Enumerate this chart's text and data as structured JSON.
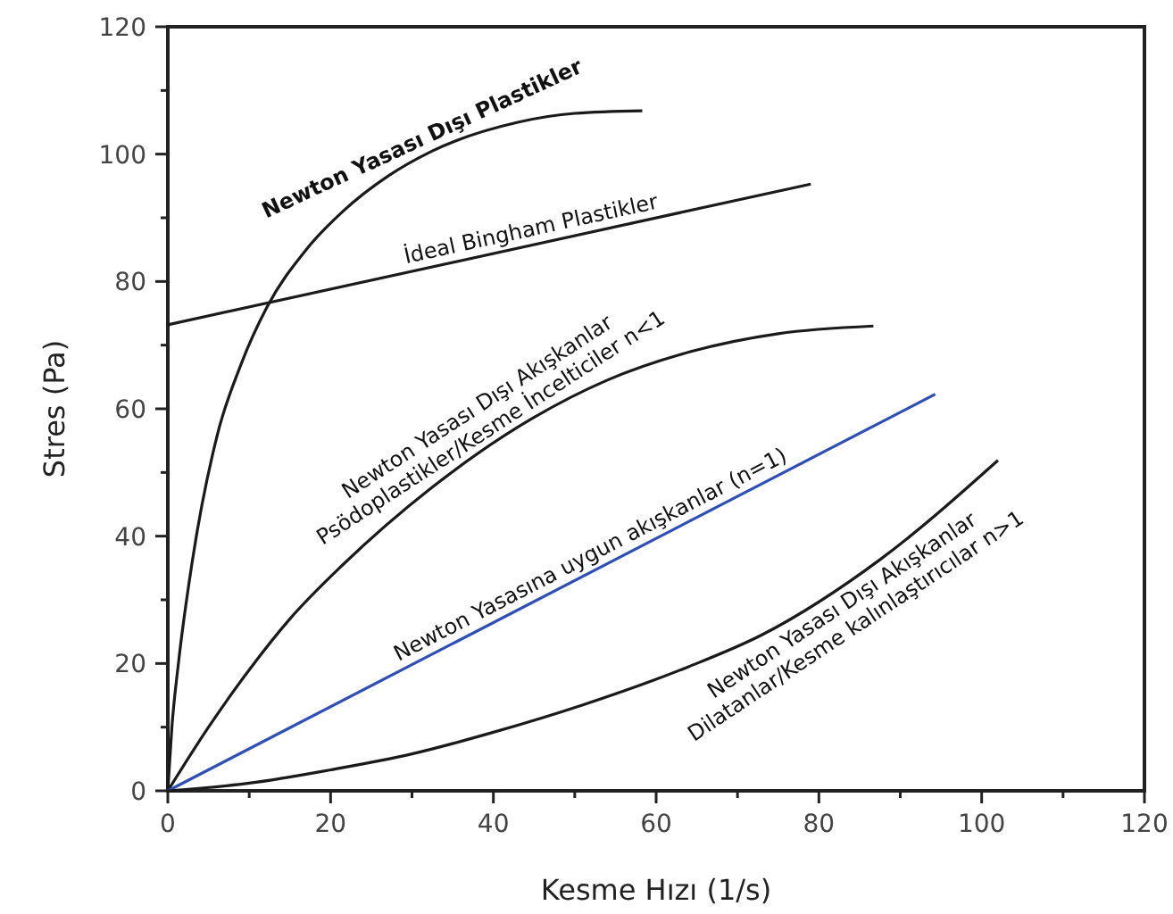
{
  "chart_data": {
    "type": "line",
    "xlabel": "Kesme Hızı (1/s)",
    "ylabel": "Stres (Pa)",
    "xlim": [
      0,
      120
    ],
    "ylim": [
      0,
      120
    ],
    "xticks": [
      0,
      {
        "value": 10,
        "label": null
      },
      20,
      {
        "value": 30,
        "label": null
      },
      40,
      {
        "value": 50,
        "label": null
      },
      60,
      {
        "value": 70,
        "label": null
      },
      80,
      {
        "value": 90,
        "label": null
      },
      100,
      {
        "value": 110,
        "label": null
      },
      120
    ],
    "yticks": [
      0,
      {
        "value": 10,
        "label": null
      },
      20,
      {
        "value": 30,
        "label": null
      },
      40,
      {
        "value": 50,
        "label": null
      },
      60,
      {
        "value": 70,
        "label": null
      },
      80,
      {
        "value": 90,
        "label": null
      },
      100,
      {
        "value": 110,
        "label": null
      },
      120
    ],
    "marker": "none",
    "line_style": "solid",
    "series": [
      {
        "color": "#1a1a1a",
        "x": [
          0,
          0.5,
          1.3,
          3,
          6.1,
          9,
          12.2,
          17,
          21.5,
          27,
          32.5,
          43,
          50,
          58.3
        ],
        "values": [
          0,
          10,
          20,
          36,
          56,
          67,
          76,
          85,
          91,
          96.5,
          100.5,
          105,
          106.4,
          106.8
        ]
      },
      {
        "color": "#1a1a1a",
        "x": [
          0,
          79
        ],
        "values": [
          73.2,
          95.3
        ]
      },
      {
        "color": "#1a1a1a",
        "x": [
          0,
          5,
          10,
          15,
          21.5,
          32.4,
          44.8,
          54,
          64.3,
          75,
          86.7
        ],
        "values": [
          0,
          10,
          19,
          27,
          35.5,
          47.6,
          58.5,
          64.5,
          69,
          71.8,
          73
        ]
      },
      {
        "color": "#2f4fb8",
        "x": [
          0,
          94.3
        ],
        "values": [
          0,
          62.3
        ]
      },
      {
        "color": "#1a1a1a",
        "x": [
          0,
          10,
          20,
          30,
          40,
          51,
          64,
          73,
          87.6,
          102
        ],
        "values": [
          0,
          1.2,
          3.3,
          5.8,
          9.2,
          13.5,
          19.5,
          24.5,
          36.4,
          51.9
        ]
      }
    ],
    "annotations": [
      "Newton Yasası Dışı Plastikler",
      "İdeal Bingham Plastikler",
      "Newton Yasası Dışı Akışkanlar",
      "Psödoplastikler/Kesme İncelticiler n<1",
      "Newton Yasasına uygun akışkanlar (n=1)",
      "Newton Yasası Dışı Akışkanlar",
      "Dilatanlar/Kesme kalınlaştırıcılar n>1"
    ]
  }
}
